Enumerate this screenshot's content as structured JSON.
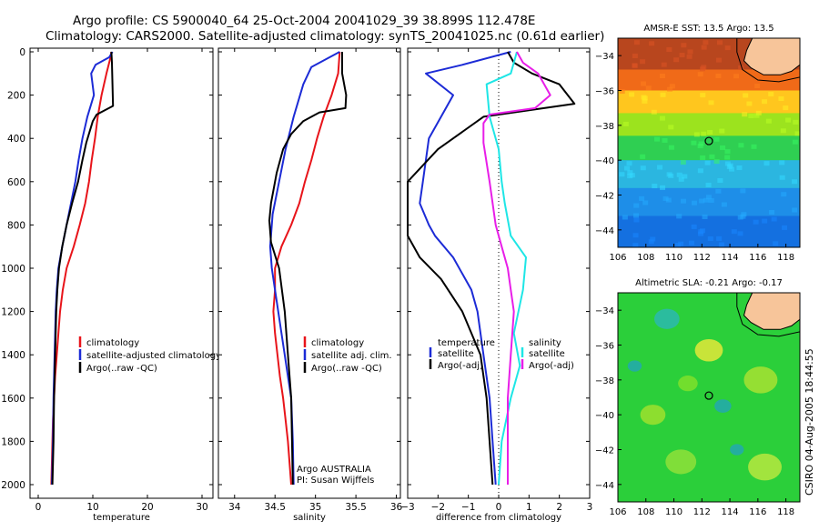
{
  "header": {
    "line1": "Argo profile: CS 5900040_64 25-Oct-2004 20041029_39 38.899S 112.478E",
    "line2": "Climatology: CARS2000. Satellite-adjusted climatology: synTS_20041025.nc (0.61d earlier)"
  },
  "side_label": "CSIRO 04-Aug-2005 18:44:55",
  "colors": {
    "climatology": "#e8141a",
    "satellite": "#1c2bd6",
    "argo": "#000000",
    "cyan": "#1ee6e6",
    "magenta": "#e81ee8"
  },
  "chart_data": [
    {
      "type": "line",
      "id": "temperature",
      "xlabel": "temperature",
      "ylabel": "",
      "xlim": [
        -1.5,
        32
      ],
      "ylim": [
        2000,
        0
      ],
      "xticks": [
        0,
        10,
        20,
        30
      ],
      "yticks": [
        0,
        200,
        400,
        600,
        800,
        1000,
        1200,
        1400,
        1600,
        1800,
        2000
      ],
      "legend": [
        "climatology",
        "satellite-adjusted climatology",
        "Argo(..raw -QC)"
      ],
      "series": [
        {
          "name": "climatology",
          "color": "climatology",
          "points": [
            [
              13.4,
              0
            ],
            [
              13.2,
              30
            ],
            [
              12.5,
              100
            ],
            [
              11.6,
              200
            ],
            [
              10.9,
              300
            ],
            [
              10.4,
              400
            ],
            [
              9.8,
              500
            ],
            [
              9.3,
              600
            ],
            [
              8.6,
              700
            ],
            [
              7.6,
              800
            ],
            [
              6.5,
              900
            ],
            [
              5.2,
              1000
            ],
            [
              4.5,
              1100
            ],
            [
              4.0,
              1200
            ],
            [
              3.7,
              1300
            ],
            [
              3.4,
              1400
            ],
            [
              3.1,
              1500
            ],
            [
              2.9,
              1600
            ],
            [
              2.7,
              1700
            ],
            [
              2.6,
              1800
            ],
            [
              2.5,
              1900
            ],
            [
              2.4,
              2000
            ]
          ]
        },
        {
          "name": "satellite-adjusted climatology",
          "color": "satellite",
          "points": [
            [
              13.6,
              0
            ],
            [
              13.0,
              25
            ],
            [
              10.5,
              60
            ],
            [
              9.7,
              100
            ],
            [
              10.2,
              200
            ],
            [
              9.0,
              300
            ],
            [
              8.1,
              400
            ],
            [
              7.4,
              500
            ],
            [
              6.8,
              600
            ],
            [
              6.0,
              700
            ],
            [
              5.2,
              800
            ],
            [
              4.4,
              900
            ],
            [
              3.7,
              1000
            ],
            [
              3.4,
              1100
            ],
            [
              3.2,
              1200
            ],
            [
              3.0,
              1400
            ],
            [
              2.8,
              1600
            ],
            [
              2.7,
              1800
            ],
            [
              2.5,
              2000
            ]
          ]
        },
        {
          "name": "Argo(..raw -QC)",
          "color": "argo",
          "points": [
            [
              13.4,
              0
            ],
            [
              13.5,
              50
            ],
            [
              13.6,
              150
            ],
            [
              13.7,
              250
            ],
            [
              12.2,
              270
            ],
            [
              10.7,
              290
            ],
            [
              10.0,
              320
            ],
            [
              9.4,
              370
            ],
            [
              8.8,
              420
            ],
            [
              8.1,
              500
            ],
            [
              7.3,
              600
            ],
            [
              6.2,
              700
            ],
            [
              5.2,
              800
            ],
            [
              4.4,
              900
            ],
            [
              3.8,
              1000
            ],
            [
              3.5,
              1100
            ],
            [
              3.3,
              1200
            ],
            [
              3.1,
              1400
            ],
            [
              2.9,
              1600
            ],
            [
              2.8,
              1800
            ],
            [
              2.6,
              2000
            ]
          ]
        }
      ]
    },
    {
      "type": "line",
      "id": "salinity",
      "xlabel": "salinity",
      "ylabel": "",
      "xlim": [
        33.8,
        36.05
      ],
      "ylim": [
        2000,
        0
      ],
      "xticks": [
        34,
        34.5,
        35,
        35.5,
        36
      ],
      "legend": [
        "climatology",
        "satellite adj. clim.",
        "Argo(..raw -QC)"
      ],
      "footer": [
        "Argo AUSTRALIA",
        "PI: Susan Wijffels"
      ],
      "series": [
        {
          "name": "climatology",
          "color": "climatology",
          "points": [
            [
              35.3,
              0
            ],
            [
              35.28,
              100
            ],
            [
              35.2,
              200
            ],
            [
              35.1,
              300
            ],
            [
              35.02,
              400
            ],
            [
              34.95,
              500
            ],
            [
              34.87,
              600
            ],
            [
              34.8,
              700
            ],
            [
              34.7,
              800
            ],
            [
              34.58,
              900
            ],
            [
              34.5,
              1000
            ],
            [
              34.5,
              1100
            ],
            [
              34.48,
              1200
            ],
            [
              34.5,
              1300
            ],
            [
              34.53,
              1400
            ],
            [
              34.56,
              1500
            ],
            [
              34.6,
              1600
            ],
            [
              34.63,
              1700
            ],
            [
              34.66,
              1800
            ],
            [
              34.7,
              2000
            ]
          ]
        },
        {
          "name": "satellite adj. clim.",
          "color": "satellite",
          "points": [
            [
              35.3,
              0
            ],
            [
              34.95,
              70
            ],
            [
              34.85,
              150
            ],
            [
              34.73,
              300
            ],
            [
              34.63,
              450
            ],
            [
              34.55,
              600
            ],
            [
              34.47,
              750
            ],
            [
              34.44,
              900
            ],
            [
              34.46,
              1000
            ],
            [
              34.5,
              1100
            ],
            [
              34.58,
              1300
            ],
            [
              34.7,
              1600
            ],
            [
              34.72,
              1800
            ],
            [
              34.73,
              2000
            ]
          ]
        },
        {
          "name": "Argo(..raw -QC)",
          "color": "argo",
          "points": [
            [
              35.33,
              0
            ],
            [
              35.33,
              100
            ],
            [
              35.38,
              200
            ],
            [
              35.37,
              260
            ],
            [
              35.05,
              280
            ],
            [
              34.85,
              320
            ],
            [
              34.7,
              380
            ],
            [
              34.6,
              450
            ],
            [
              34.52,
              560
            ],
            [
              34.45,
              700
            ],
            [
              34.43,
              780
            ],
            [
              34.45,
              880
            ],
            [
              34.55,
              1000
            ],
            [
              34.62,
              1200
            ],
            [
              34.66,
              1400
            ],
            [
              34.7,
              1600
            ],
            [
              34.71,
              1800
            ],
            [
              34.72,
              2000
            ]
          ]
        }
      ]
    },
    {
      "type": "line",
      "id": "difference",
      "xlabel": "difference from climatology",
      "ylabel": "",
      "xlim": [
        -3,
        3
      ],
      "ylim": [
        2000,
        0
      ],
      "xticks": [
        -3,
        -2,
        -1,
        0,
        1,
        2,
        3
      ],
      "legend_left_title": "temperature",
      "legend_left": [
        "satellite",
        "Argo(-adj)"
      ],
      "legend_right_title": "salinity",
      "legend_right": [
        "satellite",
        "Argo(-adj)"
      ],
      "series": [
        {
          "name": "temperature satellite",
          "color": "satellite",
          "points": [
            [
              0.4,
              0
            ],
            [
              -1.2,
              60
            ],
            [
              -2.4,
              100
            ],
            [
              -1.5,
              200
            ],
            [
              -1.9,
              300
            ],
            [
              -2.3,
              400
            ],
            [
              -2.4,
              500
            ],
            [
              -2.5,
              600
            ],
            [
              -2.6,
              700
            ],
            [
              -2.3,
              800
            ],
            [
              -2.1,
              850
            ],
            [
              -1.5,
              950
            ],
            [
              -0.9,
              1100
            ],
            [
              -0.7,
              1200
            ],
            [
              -0.5,
              1400
            ],
            [
              -0.3,
              1600
            ],
            [
              -0.2,
              1800
            ],
            [
              -0.1,
              2000
            ]
          ]
        },
        {
          "name": "temperature Argo(-adj)",
          "color": "argo",
          "points": [
            [
              0.3,
              0
            ],
            [
              0.5,
              50
            ],
            [
              1.1,
              100
            ],
            [
              2.0,
              150
            ],
            [
              2.5,
              240
            ],
            [
              1.0,
              270
            ],
            [
              -0.5,
              300
            ],
            [
              -1.5,
              400
            ],
            [
              -2.0,
              450
            ],
            [
              -3.0,
              600
            ],
            [
              -3.0,
              700
            ],
            [
              -3.0,
              850
            ],
            [
              -2.6,
              950
            ],
            [
              -1.9,
              1050
            ],
            [
              -1.2,
              1200
            ],
            [
              -0.6,
              1400
            ],
            [
              -0.4,
              1600
            ],
            [
              -0.3,
              1800
            ],
            [
              -0.2,
              2000
            ]
          ]
        },
        {
          "name": "salinity satellite",
          "color": "cyan",
          "points": [
            [
              0.6,
              0
            ],
            [
              0.4,
              100
            ],
            [
              -0.4,
              150
            ],
            [
              -0.3,
              300
            ],
            [
              0.0,
              450
            ],
            [
              0.1,
              600
            ],
            [
              0.2,
              700
            ],
            [
              0.4,
              850
            ],
            [
              0.9,
              950
            ],
            [
              0.8,
              1100
            ],
            [
              0.5,
              1300
            ],
            [
              0.7,
              1450
            ],
            [
              0.4,
              1600
            ],
            [
              0.1,
              1800
            ],
            [
              0.0,
              2000
            ]
          ]
        },
        {
          "name": "salinity Argo(-adj)",
          "color": "magenta",
          "points": [
            [
              0.6,
              0
            ],
            [
              0.8,
              50
            ],
            [
              1.3,
              100
            ],
            [
              1.7,
              200
            ],
            [
              1.2,
              260
            ],
            [
              -0.3,
              290
            ],
            [
              -0.5,
              330
            ],
            [
              -0.5,
              420
            ],
            [
              -0.3,
              600
            ],
            [
              -0.1,
              800
            ],
            [
              0.1,
              900
            ],
            [
              0.3,
              1000
            ],
            [
              0.4,
              1100
            ],
            [
              0.5,
              1200
            ],
            [
              0.4,
              1400
            ],
            [
              0.3,
              1600
            ],
            [
              0.3,
              1800
            ],
            [
              0.3,
              2000
            ]
          ]
        }
      ]
    },
    {
      "type": "heatmap",
      "id": "sst-map",
      "title": "AMSR-E SST: 13.5 Argo: 13.5",
      "xlim": [
        106,
        119
      ],
      "ylim": [
        -45,
        -33
      ],
      "xticks": [
        106,
        108,
        110,
        112,
        114,
        116,
        118
      ],
      "yticks": [
        -34,
        -36,
        -38,
        -40,
        -42,
        -44
      ],
      "marker": [
        112.5,
        -38.9
      ],
      "bands": [
        {
          "lat_top": -33,
          "lat_bottom": -34.8,
          "color": "#b8461e"
        },
        {
          "lat_top": -34.8,
          "lat_bottom": -36.0,
          "color": "#f06a18"
        },
        {
          "lat_top": -36.0,
          "lat_bottom": -37.3,
          "color": "#ffc61e"
        },
        {
          "lat_top": -37.3,
          "lat_bottom": -38.6,
          "color": "#9ce31e"
        },
        {
          "lat_top": -38.6,
          "lat_bottom": -40.0,
          "color": "#2fcf52"
        },
        {
          "lat_top": -40.0,
          "lat_bottom": -41.6,
          "color": "#2bb6e0"
        },
        {
          "lat_top": -41.6,
          "lat_bottom": -43.2,
          "color": "#1e8ee8"
        },
        {
          "lat_top": -43.2,
          "lat_bottom": -45,
          "color": "#1470e0"
        }
      ]
    },
    {
      "type": "heatmap",
      "id": "sla-map",
      "title": "Altimetric SLA: -0.21 Argo: -0.17",
      "xlim": [
        106,
        119
      ],
      "ylim": [
        -45,
        -33
      ],
      "xticks": [
        106,
        108,
        110,
        112,
        114,
        116,
        118
      ],
      "yticks": [
        -34,
        -36,
        -38,
        -40,
        -42,
        -44
      ],
      "marker": [
        112.5,
        -38.9
      ],
      "background": "#2bcf3a",
      "blobs": [
        {
          "lon": 109.5,
          "lat": -34.5,
          "r": 0.9,
          "color": "#2cb9b0"
        },
        {
          "lon": 112.5,
          "lat": -36.3,
          "r": 1.0,
          "color": "#e4e83a"
        },
        {
          "lon": 111.0,
          "lat": -38.2,
          "r": 0.7,
          "color": "#7fe02c"
        },
        {
          "lon": 113.5,
          "lat": -39.5,
          "r": 0.6,
          "color": "#23a8b0"
        },
        {
          "lon": 108.5,
          "lat": -40.0,
          "r": 0.9,
          "color": "#9fe02e"
        },
        {
          "lon": 116.2,
          "lat": -38.0,
          "r": 1.2,
          "color": "#a8e232"
        },
        {
          "lon": 110.5,
          "lat": -42.7,
          "r": 1.1,
          "color": "#8fe03a"
        },
        {
          "lon": 116.5,
          "lat": -43.0,
          "r": 1.2,
          "color": "#b7e840"
        },
        {
          "lon": 114.5,
          "lat": -42.0,
          "r": 0.5,
          "color": "#23a8b0"
        },
        {
          "lon": 107.2,
          "lat": -37.2,
          "r": 0.5,
          "color": "#23a8b0"
        }
      ]
    }
  ]
}
